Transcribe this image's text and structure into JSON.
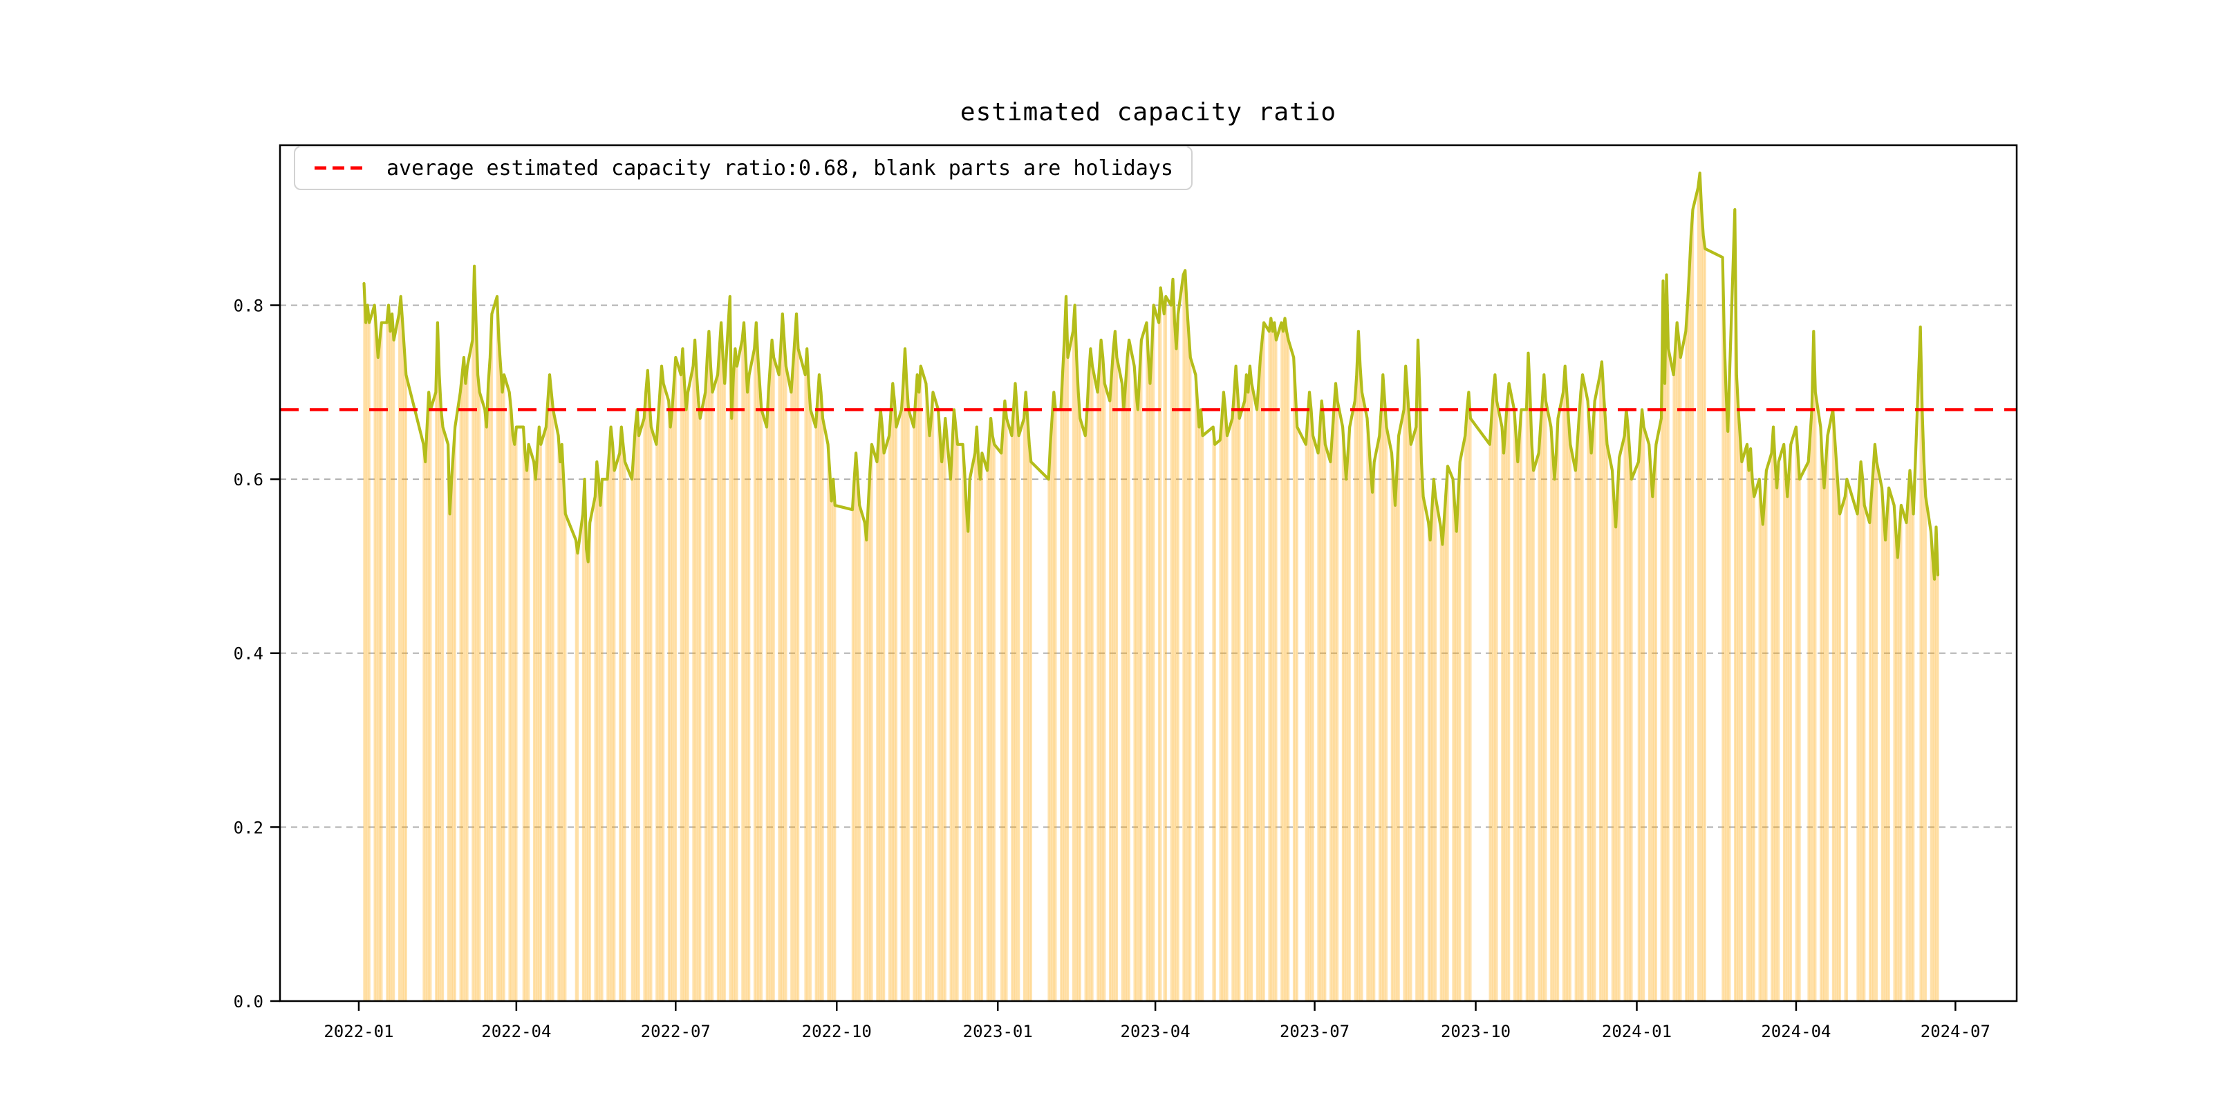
{
  "title": "estimated capacity ratio",
  "legend": {
    "label": "average estimated capacity ratio:0.68, blank parts are holidays",
    "swatch": "red-dashed-line"
  },
  "colors": {
    "line": "#b4bd1a",
    "bar": "#ffa500",
    "bar_alpha": 0.32,
    "average_line": "#ff0000",
    "grid": "#b0b0b0",
    "spine": "#000000",
    "legend_border": "#d2d2d2",
    "background": "#ffffff"
  },
  "chart_data": {
    "type": "line",
    "title": "estimated capacity ratio",
    "xlabel": "",
    "ylabel": "",
    "grid": true,
    "legend_position": "upper left",
    "average": 0.68,
    "ylim": [
      0,
      0.984
    ],
    "yticks": [
      0.0,
      0.2,
      0.4,
      0.6,
      0.8
    ],
    "xticks": [
      "2022-01",
      "2022-04",
      "2022-07",
      "2022-10",
      "2023-01",
      "2023-04",
      "2023-07",
      "2023-10",
      "2024-01",
      "2024-04",
      "2024-07"
    ],
    "x_start": "2022-01-01",
    "x_margin_days": 45,
    "note": "weeks: [monday, [Mon..Fri daily estimated capacity ratio]]; null = holiday (blank band, no bar)",
    "weeks": [
      [
        "2022-01-03",
        [
          null,
          0.825,
          0.78,
          0.8,
          0.78
        ]
      ],
      [
        "2022-01-10",
        [
          0.8,
          0.77,
          0.74,
          0.76,
          0.78
        ]
      ],
      [
        "2022-01-17",
        [
          0.78,
          0.8,
          0.77,
          0.79,
          0.76
        ]
      ],
      [
        "2022-01-24",
        [
          0.79,
          0.81,
          0.78,
          0.75,
          0.72
        ]
      ],
      [
        "2022-01-31",
        [
          null,
          null,
          null,
          null,
          null
        ]
      ],
      [
        "2022-02-07",
        [
          0.64,
          0.62,
          0.66,
          0.7,
          0.68
        ]
      ],
      [
        "2022-02-14",
        [
          0.7,
          0.78,
          0.72,
          0.68,
          0.66
        ]
      ],
      [
        "2022-02-21",
        [
          0.64,
          0.56,
          0.6,
          0.63,
          0.66
        ]
      ],
      [
        "2022-02-28",
        [
          0.7,
          0.72,
          0.74,
          0.71,
          0.73
        ]
      ],
      [
        "2022-03-07",
        [
          0.76,
          0.845,
          0.78,
          0.72,
          0.7
        ]
      ],
      [
        "2022-03-14",
        [
          0.68,
          0.66,
          0.71,
          0.74,
          0.79
        ]
      ],
      [
        "2022-03-21",
        [
          0.81,
          0.76,
          0.73,
          0.7,
          0.72
        ]
      ],
      [
        "2022-03-28",
        [
          0.7,
          0.68,
          0.65,
          0.64,
          0.66
        ]
      ],
      [
        "2022-04-04",
        [
          null,
          0.66,
          0.63,
          0.61,
          0.64
        ]
      ],
      [
        "2022-04-11",
        [
          0.62,
          0.6,
          0.63,
          0.66,
          0.64
        ]
      ],
      [
        "2022-04-18",
        [
          0.66,
          0.69,
          0.72,
          0.7,
          0.68
        ]
      ],
      [
        "2022-04-25",
        [
          0.65,
          0.62,
          0.64,
          0.6,
          0.56
        ]
      ],
      [
        "2022-05-02",
        [
          null,
          null,
          null,
          0.53,
          0.515
        ]
      ],
      [
        "2022-05-09",
        [
          0.56,
          0.6,
          0.52,
          0.505,
          0.55
        ]
      ],
      [
        "2022-05-16",
        [
          0.58,
          0.62,
          0.6,
          0.57,
          0.6
        ]
      ],
      [
        "2022-05-23",
        [
          0.6,
          0.63,
          0.66,
          0.64,
          0.61
        ]
      ],
      [
        "2022-05-30",
        [
          0.63,
          0.66,
          0.64,
          0.62,
          null
        ]
      ],
      [
        "2022-06-06",
        [
          0.6,
          0.63,
          0.66,
          0.68,
          0.65
        ]
      ],
      [
        "2022-06-13",
        [
          0.67,
          0.7,
          0.725,
          0.69,
          0.66
        ]
      ],
      [
        "2022-06-20",
        [
          0.64,
          0.67,
          0.7,
          0.73,
          0.71
        ]
      ],
      [
        "2022-06-27",
        [
          0.69,
          0.66,
          0.68,
          0.71,
          0.74
        ]
      ],
      [
        "2022-07-04",
        [
          0.72,
          0.75,
          0.71,
          0.68,
          0.7
        ]
      ],
      [
        "2022-07-11",
        [
          0.73,
          0.76,
          0.72,
          0.69,
          0.67
        ]
      ],
      [
        "2022-07-18",
        [
          0.7,
          0.74,
          0.77,
          0.73,
          0.7
        ]
      ],
      [
        "2022-07-25",
        [
          0.72,
          0.75,
          0.78,
          0.74,
          0.71
        ]
      ],
      [
        "2022-08-01",
        [
          0.81,
          0.67,
          0.72,
          0.75,
          0.73
        ]
      ],
      [
        "2022-08-08",
        [
          0.76,
          0.78,
          0.74,
          0.7,
          0.72
        ]
      ],
      [
        "2022-08-15",
        [
          0.75,
          0.78,
          0.74,
          0.71,
          0.68
        ]
      ],
      [
        "2022-08-22",
        [
          0.66,
          0.7,
          0.73,
          0.76,
          0.74
        ]
      ],
      [
        "2022-08-29",
        [
          0.72,
          0.75,
          0.79,
          0.76,
          0.73
        ]
      ],
      [
        "2022-09-05",
        [
          0.7,
          0.73,
          0.76,
          0.79,
          0.75
        ]
      ],
      [
        "2022-09-12",
        [
          null,
          0.72,
          0.75,
          0.71,
          0.68
        ]
      ],
      [
        "2022-09-19",
        [
          0.66,
          0.69,
          0.72,
          0.7,
          0.67
        ]
      ],
      [
        "2022-09-26",
        [
          0.64,
          0.61,
          0.575,
          0.6,
          0.57
        ]
      ],
      [
        "2022-10-03",
        [
          null,
          null,
          null,
          null,
          null
        ]
      ],
      [
        "2022-10-10",
        [
          0.565,
          0.6,
          0.63,
          0.6,
          0.57
        ]
      ],
      [
        "2022-10-17",
        [
          0.55,
          0.53,
          0.57,
          0.61,
          0.64
        ]
      ],
      [
        "2022-10-24",
        [
          0.62,
          0.65,
          0.68,
          0.66,
          0.63
        ]
      ],
      [
        "2022-10-31",
        [
          0.65,
          0.68,
          0.71,
          0.69,
          0.66
        ]
      ],
      [
        "2022-11-07",
        [
          0.68,
          0.71,
          0.75,
          0.71,
          0.68
        ]
      ],
      [
        "2022-11-14",
        [
          0.66,
          0.69,
          0.72,
          0.7,
          0.73
        ]
      ],
      [
        "2022-11-21",
        [
          0.71,
          0.68,
          0.65,
          0.67,
          0.7
        ]
      ],
      [
        "2022-11-28",
        [
          0.68,
          0.65,
          0.62,
          0.64,
          0.67
        ]
      ],
      [
        "2022-12-05",
        [
          0.6,
          0.64,
          0.68,
          0.66,
          0.64
        ]
      ],
      [
        "2022-12-12",
        [
          0.64,
          0.61,
          0.57,
          0.54,
          0.6
        ]
      ],
      [
        "2022-12-19",
        [
          0.63,
          0.66,
          0.62,
          0.6,
          0.63
        ]
      ],
      [
        "2022-12-26",
        [
          0.61,
          0.64,
          0.67,
          0.65,
          0.64
        ]
      ],
      [
        "2023-01-02",
        [
          null,
          0.63,
          0.66,
          0.69,
          0.67
        ]
      ],
      [
        "2023-01-09",
        [
          0.65,
          0.68,
          0.71,
          0.68,
          0.65
        ]
      ],
      [
        "2023-01-16",
        [
          0.67,
          0.7,
          0.67,
          0.64,
          0.62
        ]
      ],
      [
        "2023-01-23",
        [
          null,
          null,
          null,
          null,
          null
        ]
      ],
      [
        "2023-01-30",
        [
          0.6,
          0.64,
          0.67,
          0.7,
          0.68
        ]
      ],
      [
        "2023-02-06",
        [
          0.68,
          0.72,
          0.76,
          0.81,
          0.74
        ]
      ],
      [
        "2023-02-13",
        [
          0.77,
          0.8,
          0.74,
          0.7,
          0.67
        ]
      ],
      [
        "2023-02-20",
        [
          0.65,
          0.68,
          0.72,
          0.75,
          0.73
        ]
      ],
      [
        "2023-02-27",
        [
          0.7,
          0.73,
          0.76,
          0.74,
          0.71
        ]
      ],
      [
        "2023-03-06",
        [
          0.69,
          0.72,
          0.75,
          0.77,
          0.74
        ]
      ],
      [
        "2023-03-13",
        [
          0.71,
          0.68,
          0.71,
          0.74,
          0.76
        ]
      ],
      [
        "2023-03-20",
        [
          0.73,
          0.7,
          0.68,
          0.72,
          0.76
        ]
      ],
      [
        "2023-03-27",
        [
          0.78,
          0.74,
          0.71,
          0.75,
          0.8
        ]
      ],
      [
        "2023-04-03",
        [
          0.78,
          0.82,
          null,
          0.79,
          0.81
        ]
      ],
      [
        "2023-04-10",
        [
          0.8,
          0.83,
          0.78,
          0.75,
          0.79
        ]
      ],
      [
        "2023-04-17",
        [
          0.835,
          0.84,
          0.8,
          0.77,
          0.74
        ]
      ],
      [
        "2023-04-24",
        [
          0.72,
          0.69,
          0.66,
          0.68,
          0.65
        ]
      ],
      [
        "2023-05-01",
        [
          null,
          null,
          null,
          0.66,
          0.64
        ]
      ],
      [
        "2023-05-08",
        [
          0.645,
          0.67,
          0.7,
          0.68,
          0.65
        ]
      ],
      [
        "2023-05-15",
        [
          0.67,
          0.7,
          0.73,
          0.7,
          0.67
        ]
      ],
      [
        "2023-05-22",
        [
          0.69,
          0.72,
          0.7,
          0.73,
          0.71
        ]
      ],
      [
        "2023-05-29",
        [
          0.68,
          0.71,
          0.74,
          0.76,
          0.78
        ]
      ],
      [
        "2023-06-05",
        [
          0.77,
          0.785,
          0.77,
          0.78,
          0.76
        ]
      ],
      [
        "2023-06-12",
        [
          0.78,
          0.77,
          0.785,
          0.77,
          0.76
        ]
      ],
      [
        "2023-06-19",
        [
          0.74,
          0.7,
          0.66,
          null,
          null
        ]
      ],
      [
        "2023-06-26",
        [
          0.64,
          0.67,
          0.7,
          0.68,
          0.65
        ]
      ],
      [
        "2023-07-03",
        [
          0.63,
          0.66,
          0.69,
          0.67,
          0.64
        ]
      ],
      [
        "2023-07-10",
        [
          0.62,
          0.65,
          0.68,
          0.71,
          0.69
        ]
      ],
      [
        "2023-07-17",
        [
          0.66,
          0.63,
          0.6,
          0.63,
          0.66
        ]
      ],
      [
        "2023-07-24",
        [
          0.69,
          0.72,
          0.77,
          0.73,
          0.7
        ]
      ],
      [
        "2023-07-31",
        [
          0.67,
          0.64,
          0.61,
          0.585,
          0.62
        ]
      ],
      [
        "2023-08-07",
        [
          0.65,
          0.68,
          0.72,
          0.69,
          0.66
        ]
      ],
      [
        "2023-08-14",
        [
          0.63,
          0.6,
          0.57,
          0.61,
          0.65
        ]
      ],
      [
        "2023-08-21",
        [
          0.68,
          0.73,
          0.7,
          0.67,
          0.64
        ]
      ],
      [
        "2023-08-28",
        [
          0.66,
          0.76,
          0.7,
          0.62,
          0.58
        ]
      ],
      [
        "2023-09-04",
        [
          0.55,
          0.53,
          0.565,
          0.6,
          0.58
        ]
      ],
      [
        "2023-09-11",
        [
          0.545,
          0.525,
          0.555,
          0.585,
          0.615
        ]
      ],
      [
        "2023-09-18",
        [
          0.6,
          0.57,
          0.54,
          0.58,
          0.62
        ]
      ],
      [
        "2023-09-25",
        [
          0.65,
          0.68,
          0.7,
          0.67,
          null
        ]
      ],
      [
        "2023-10-02",
        [
          null,
          null,
          null,
          null,
          null
        ]
      ],
      [
        "2023-10-09",
        [
          0.64,
          0.67,
          0.7,
          0.72,
          0.69
        ]
      ],
      [
        "2023-10-16",
        [
          0.66,
          0.63,
          0.66,
          0.69,
          0.71
        ]
      ],
      [
        "2023-10-23",
        [
          0.68,
          0.65,
          0.62,
          0.65,
          0.68
        ]
      ],
      [
        "2023-10-30",
        [
          0.68,
          0.745,
          0.7,
          0.64,
          0.61
        ]
      ],
      [
        "2023-11-06",
        [
          0.63,
          0.66,
          0.69,
          0.72,
          0.69
        ]
      ],
      [
        "2023-11-13",
        [
          0.66,
          0.63,
          0.6,
          0.63,
          0.67
        ]
      ],
      [
        "2023-11-20",
        [
          0.7,
          0.73,
          0.7,
          0.67,
          0.64
        ]
      ],
      [
        "2023-11-27",
        [
          0.61,
          0.64,
          0.67,
          0.7,
          0.72
        ]
      ],
      [
        "2023-12-04",
        [
          0.69,
          0.66,
          0.63,
          0.66,
          0.69
        ]
      ],
      [
        "2023-12-11",
        [
          0.72,
          0.735,
          0.7,
          0.67,
          0.64
        ]
      ],
      [
        "2023-12-18",
        [
          0.61,
          0.575,
          0.545,
          0.585,
          0.625
        ]
      ],
      [
        "2023-12-25",
        [
          0.65,
          0.68,
          0.66,
          0.63,
          0.6
        ]
      ],
      [
        "2024-01-01",
        [
          null,
          0.62,
          0.65,
          0.68,
          0.66
        ]
      ],
      [
        "2024-01-08",
        [
          0.64,
          0.61,
          0.58,
          0.61,
          0.64
        ]
      ],
      [
        "2024-01-15",
        [
          0.67,
          0.828,
          0.71,
          0.835,
          0.75
        ]
      ],
      [
        "2024-01-22",
        [
          0.72,
          0.75,
          0.78,
          0.76,
          0.74
        ]
      ],
      [
        "2024-01-29",
        [
          0.77,
          0.8,
          0.84,
          0.88,
          0.91
        ]
      ],
      [
        "2024-02-05",
        [
          0.935,
          0.952,
          0.91,
          0.88,
          0.865
        ]
      ],
      [
        "2024-02-12",
        [
          null,
          null,
          null,
          null,
          null
        ]
      ],
      [
        "2024-02-19",
        [
          0.855,
          0.76,
          0.7,
          0.655,
          0.72
        ]
      ],
      [
        "2024-02-26",
        [
          0.91,
          0.72,
          0.68,
          0.65,
          0.62
        ]
      ],
      [
        "2024-03-04",
        [
          0.64,
          0.61,
          0.635,
          0.6,
          0.58
        ]
      ],
      [
        "2024-03-11",
        [
          0.6,
          0.57,
          0.548,
          0.58,
          0.61
        ]
      ],
      [
        "2024-03-18",
        [
          0.63,
          0.66,
          0.62,
          0.59,
          0.62
        ]
      ],
      [
        "2024-03-25",
        [
          0.64,
          0.61,
          0.58,
          0.61,
          0.64
        ]
      ],
      [
        "2024-04-01",
        [
          0.66,
          0.63,
          0.6,
          null,
          null
        ]
      ],
      [
        "2024-04-08",
        [
          0.62,
          0.65,
          0.68,
          0.77,
          0.7
        ]
      ],
      [
        "2024-04-15",
        [
          0.66,
          0.62,
          0.59,
          0.62,
          0.65
        ]
      ],
      [
        "2024-04-22",
        [
          0.68,
          0.65,
          0.62,
          0.59,
          0.56
        ]
      ],
      [
        "2024-04-29",
        [
          0.58,
          0.6,
          null,
          null,
          null
        ]
      ],
      [
        "2024-05-06",
        [
          0.56,
          0.59,
          0.62,
          0.6,
          0.57
        ]
      ],
      [
        "2024-05-13",
        [
          0.55,
          0.58,
          0.61,
          0.64,
          0.62
        ]
      ],
      [
        "2024-05-20",
        [
          0.59,
          0.56,
          0.53,
          0.56,
          0.59
        ]
      ],
      [
        "2024-05-27",
        [
          0.57,
          0.54,
          0.51,
          0.54,
          0.57
        ]
      ],
      [
        "2024-06-03",
        [
          0.55,
          0.58,
          0.61,
          0.59,
          0.56
        ]
      ],
      [
        "2024-06-10",
        [
          null,
          0.775,
          0.68,
          0.62,
          0.58
        ]
      ],
      [
        "2024-06-17",
        [
          0.54,
          0.51,
          0.485,
          0.545,
          0.49
        ]
      ]
    ]
  }
}
